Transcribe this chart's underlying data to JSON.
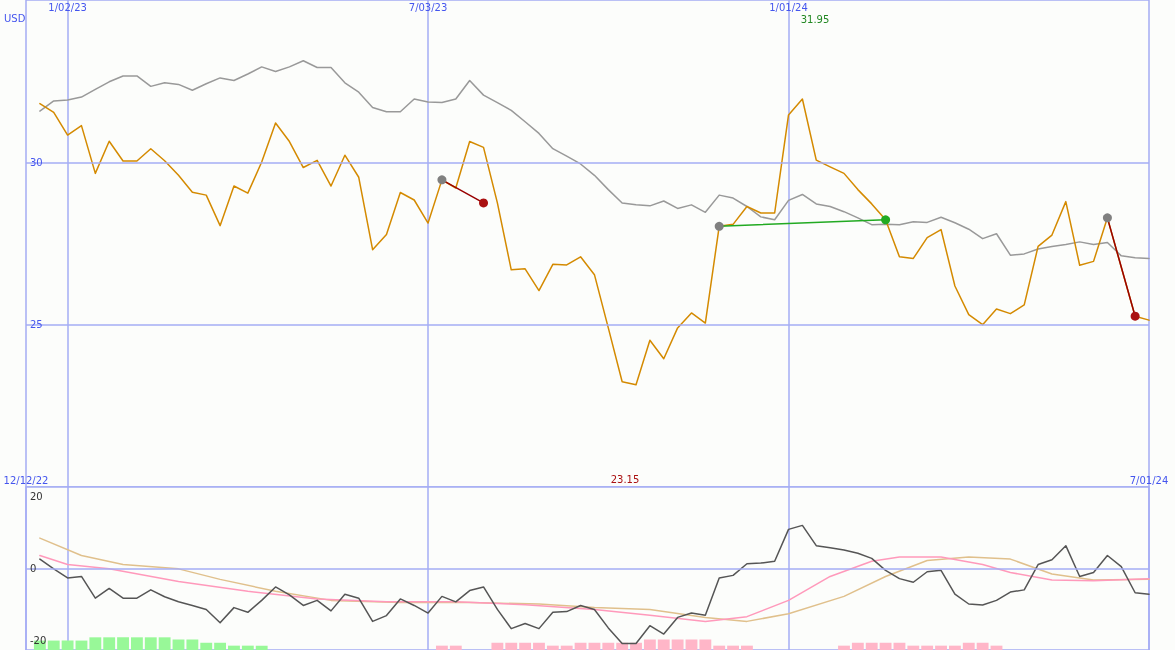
{
  "chart_data": [
    {
      "type": "line",
      "ylabel": "USD",
      "xlim": [
        "2022-12-12",
        "2024-07-01"
      ],
      "ylim": [
        20,
        35
      ],
      "xticks": [
        {
          "value": "2023-01-02",
          "label": "1/02/23"
        },
        {
          "value": "2023-07-03",
          "label": "7/03/23"
        },
        {
          "value": "2024-01-01",
          "label": "1/01/24"
        }
      ],
      "yticks": [
        25,
        30
      ],
      "grid": true,
      "marker": "none",
      "x": [
        "2022-12-19",
        "2022-12-26",
        "2023-01-02",
        "2023-01-09",
        "2023-01-16",
        "2023-01-23",
        "2023-01-30",
        "2023-02-06",
        "2023-02-13",
        "2023-02-20",
        "2023-02-27",
        "2023-03-06",
        "2023-03-13",
        "2023-03-20",
        "2023-03-27",
        "2023-04-03",
        "2023-04-10",
        "2023-04-17",
        "2023-04-24",
        "2023-05-01",
        "2023-05-08",
        "2023-05-15",
        "2023-05-22",
        "2023-05-29",
        "2023-06-05",
        "2023-06-12",
        "2023-06-19",
        "2023-06-26",
        "2023-07-03",
        "2023-07-10",
        "2023-07-17",
        "2023-07-24",
        "2023-07-31",
        "2023-08-07",
        "2023-08-14",
        "2023-08-21",
        "2023-08-28",
        "2023-09-04",
        "2023-09-11",
        "2023-09-18",
        "2023-09-25",
        "2023-10-02",
        "2023-10-09",
        "2023-10-16",
        "2023-10-23",
        "2023-10-30",
        "2023-11-06",
        "2023-11-13",
        "2023-11-20",
        "2023-11-27",
        "2023-12-04",
        "2023-12-11",
        "2023-12-18",
        "2023-12-25",
        "2024-01-01",
        "2024-01-08",
        "2024-01-15",
        "2024-01-22",
        "2024-01-29",
        "2024-02-05",
        "2024-02-12",
        "2024-02-19",
        "2024-02-26",
        "2024-03-04",
        "2024-03-11",
        "2024-03-18",
        "2024-03-25",
        "2024-04-01",
        "2024-04-08",
        "2024-04-15",
        "2024-04-22",
        "2024-04-29",
        "2024-05-06",
        "2024-05-13",
        "2024-05-20",
        "2024-05-27",
        "2024-06-03",
        "2024-06-10",
        "2024-06-17",
        "2024-06-24",
        "2024-07-01"
      ],
      "series": [
        {
          "color": "#999999",
          "values": [
            31.58,
            31.89,
            31.92,
            32.01,
            32.25,
            32.48,
            32.66,
            32.66,
            32.34,
            32.45,
            32.4,
            32.22,
            32.42,
            32.6,
            32.52,
            32.72,
            32.94,
            32.8,
            32.94,
            33.13,
            32.92,
            32.92,
            32.45,
            32.16,
            31.69,
            31.56,
            31.56,
            31.95,
            31.86,
            31.84,
            31.95,
            32.52,
            32.07,
            31.84,
            31.6,
            31.25,
            30.89,
            30.42,
            30.19,
            29.95,
            29.6,
            29.16,
            28.75,
            28.69,
            28.66,
            28.81,
            28.58,
            28.69,
            28.46,
            28.99,
            28.9,
            28.64,
            28.32,
            28.23,
            28.83,
            29.01,
            28.72,
            28.64,
            28.48,
            28.29,
            28.08,
            28.09,
            28.08,
            28.17,
            28.15,
            28.31,
            28.14,
            27.94,
            27.65,
            27.8,
            27.14,
            27.18,
            27.33,
            27.41,
            27.47,
            27.55,
            27.47,
            27.53,
            27.12,
            27.06,
            27.04
          ]
        },
        {
          "color": "#d48a00",
          "values": [
            31.81,
            31.54,
            30.84,
            31.13,
            29.66,
            30.65,
            30.04,
            30.04,
            30.42,
            30.05,
            29.6,
            29.08,
            28.99,
            28.05,
            29.27,
            29.05,
            30.01,
            31.21,
            30.64,
            29.84,
            30.06,
            29.27,
            30.22,
            29.54,
            27.31,
            27.78,
            29.07,
            28.84,
            28.13,
            29.46,
            29.21,
            30.64,
            30.46,
            28.75,
            26.69,
            26.72,
            26.05,
            26.86,
            26.84,
            27.09,
            26.54,
            24.9,
            23.24,
            23.15,
            24.52,
            23.95,
            24.9,
            25.36,
            25.05,
            28.03,
            28.09,
            28.64,
            28.44,
            28.44,
            31.46,
            31.95,
            30.07,
            29.86,
            29.66,
            29.16,
            28.72,
            28.23,
            27.09,
            27.04,
            27.68,
            27.93,
            26.19,
            25.31,
            25.0,
            25.48,
            25.34,
            25.61,
            27.41,
            27.76,
            28.79,
            26.83,
            26.95,
            28.29,
            26.77,
            25.26,
            25.14
          ]
        },
        {
          "color": "#990000",
          "marker": "circle",
          "x": [
            "2023-07-10",
            "2023-07-31"
          ],
          "values": [
            29.46,
            28.75
          ],
          "colors": [
            "#808080",
            "#aa1111"
          ]
        },
        {
          "color": "#22aa22",
          "marker": "circle",
          "x": [
            "2023-11-27",
            "2024-02-19"
          ],
          "values": [
            28.03,
            28.23
          ],
          "colors": [
            "#808080",
            "#22aa22"
          ]
        },
        {
          "color": "#990000",
          "marker": "circle",
          "x": [
            "2024-06-10",
            "2024-06-24"
          ],
          "values": [
            28.29,
            25.26
          ],
          "colors": [
            "#808080",
            "#aa1111"
          ]
        }
      ],
      "annotations": [
        "31.95",
        "23.15"
      ]
    },
    {
      "type": "line",
      "xlim": [
        "2022-12-12",
        "2024-07-01"
      ],
      "ylim": [
        -22.5,
        22.5
      ],
      "xticks": [
        {
          "value": "2022-12-12",
          "label": "12/12/22"
        },
        {
          "value": "2023-01-02",
          "label": null
        },
        {
          "value": "2023-07-03",
          "label": null
        },
        {
          "value": "2024-01-01",
          "label": null
        },
        {
          "value": "2024-07-01",
          "label": "7/01/24"
        }
      ],
      "yticks": [
        20,
        0,
        -20
      ],
      "grid": "x",
      "marker": "none",
      "ref_lines": [
        {
          "axis": "y",
          "value": 0
        }
      ],
      "x": [
        "2022-12-19",
        "2022-12-26",
        "2023-01-02",
        "2023-01-09",
        "2023-01-16",
        "2023-01-23",
        "2023-01-30",
        "2023-02-06",
        "2023-02-13",
        "2023-02-20",
        "2023-02-27",
        "2023-03-06",
        "2023-03-13",
        "2023-03-20",
        "2023-03-27",
        "2023-04-03",
        "2023-04-10",
        "2023-04-17",
        "2023-04-24",
        "2023-05-01",
        "2023-05-08",
        "2023-05-15",
        "2023-05-22",
        "2023-05-29",
        "2023-06-05",
        "2023-06-12",
        "2023-06-19",
        "2023-06-26",
        "2023-07-03",
        "2023-07-10",
        "2023-07-17",
        "2023-07-24",
        "2023-07-31",
        "2023-08-07",
        "2023-08-14",
        "2023-08-21",
        "2023-08-28",
        "2023-09-04",
        "2023-09-11",
        "2023-09-18",
        "2023-09-25",
        "2023-10-02",
        "2023-10-09",
        "2023-10-16",
        "2023-10-23",
        "2023-10-30",
        "2023-11-06",
        "2023-11-13",
        "2023-11-20",
        "2023-11-27",
        "2023-12-04",
        "2023-12-11",
        "2023-12-18",
        "2023-12-25",
        "2024-01-01",
        "2024-01-08",
        "2024-01-15",
        "2024-01-22",
        "2024-01-29",
        "2024-02-05",
        "2024-02-12",
        "2024-02-19",
        "2024-02-26",
        "2024-03-04",
        "2024-03-11",
        "2024-03-18",
        "2024-03-25",
        "2024-04-01",
        "2024-04-08",
        "2024-04-15",
        "2024-04-22",
        "2024-04-29",
        "2024-05-06",
        "2024-05-13",
        "2024-05-20",
        "2024-05-27",
        "2024-06-03",
        "2024-06-10",
        "2024-06-17",
        "2024-06-24",
        "2024-07-01"
      ],
      "series": [
        {
          "type": "bar",
          "color": "#98f898",
          "x": [
            "2022-12-19",
            "2022-12-26",
            "2023-01-02",
            "2023-01-09",
            "2023-01-16",
            "2023-01-23",
            "2023-01-30",
            "2023-02-06",
            "2023-02-13",
            "2023-02-20",
            "2023-02-27",
            "2023-03-06",
            "2023-03-13",
            "2023-03-20",
            "2023-03-27",
            "2023-04-03",
            "2023-04-10"
          ],
          "values": [
            2.6,
            2.6,
            2.6,
            2.6,
            3.5,
            3.5,
            3.5,
            3.5,
            3.5,
            3.5,
            2.9,
            2.9,
            2.0,
            2.0,
            1.2,
            1.2,
            1.2
          ],
          "base": [
            -22.5,
            -22.5,
            -22.5,
            -22.5,
            -22.5,
            -22.5,
            -22.5,
            -22.5,
            -22.5,
            -22.5,
            -22.5,
            -22.5,
            -22.5,
            -22.5,
            -22.5,
            -22.5,
            -22.5
          ]
        },
        {
          "type": "bar",
          "color": "#ffb6c8",
          "x": [
            "2023-07-10",
            "2023-07-17",
            "2023-08-07",
            "2023-08-14",
            "2023-08-21",
            "2023-08-28",
            "2023-09-04",
            "2023-09-11",
            "2023-09-18",
            "2023-09-25",
            "2023-10-02",
            "2023-10-09",
            "2023-10-16",
            "2023-10-23",
            "2023-10-30",
            "2023-11-06",
            "2023-11-13",
            "2023-11-20",
            "2023-11-27",
            "2023-12-04",
            "2023-12-11",
            "2024-01-29",
            "2024-02-05",
            "2024-02-12",
            "2024-02-19",
            "2024-02-26",
            "2024-03-04",
            "2024-03-11",
            "2024-03-18",
            "2024-03-25",
            "2024-04-01",
            "2024-04-08",
            "2024-04-15"
          ],
          "values": [
            1.2,
            1.2,
            2.0,
            2.0,
            2.0,
            2.0,
            1.2,
            1.2,
            2.0,
            2.0,
            2.0,
            2.0,
            2.0,
            2.9,
            2.9,
            2.9,
            2.9,
            2.9,
            1.2,
            1.2,
            1.2,
            1.2,
            2.0,
            2.0,
            2.0,
            2.0,
            1.2,
            1.2,
            1.2,
            1.2,
            2.0,
            2.0,
            1.2
          ],
          "base": [
            -22.5,
            -22.5,
            -22.5,
            -22.5,
            -22.5,
            -22.5,
            -22.5,
            -22.5,
            -22.5,
            -22.5,
            -22.5,
            -22.5,
            -22.5,
            -22.5,
            -22.5,
            -22.5,
            -22.5,
            -22.5,
            -22.5,
            -22.5,
            -22.5,
            -22.5,
            -22.5,
            -22.5,
            -22.5,
            -22.5,
            -22.5,
            -22.5,
            -22.5,
            -22.5,
            -22.5,
            -22.5,
            -22.5
          ]
        },
        {
          "color": "#e0c08c",
          "x": [
            "2022-12-19",
            "2023-01-09",
            "2023-01-30",
            "2023-02-27",
            "2023-03-20",
            "2023-04-17",
            "2023-05-15",
            "2023-06-19",
            "2023-07-24",
            "2023-08-28",
            "2023-09-25",
            "2023-10-23",
            "2023-11-20",
            "2023-12-11",
            "2024-01-01",
            "2024-01-29",
            "2024-02-19",
            "2024-03-11",
            "2024-04-01",
            "2024-04-22",
            "2024-05-13",
            "2024-06-03",
            "2024-07-01"
          ],
          "values": [
            8.4,
            3.6,
            1.1,
            -0.1,
            -3.0,
            -6.3,
            -8.8,
            -9.4,
            -9.4,
            -9.8,
            -10.8,
            -11.3,
            -13.5,
            -14.6,
            -12.5,
            -7.7,
            -2.2,
            2.2,
            3.2,
            2.6,
            -1.5,
            -3.2,
            -3.0
          ]
        },
        {
          "color": "#ff99bb",
          "x": [
            "2022-12-19",
            "2023-01-02",
            "2023-01-23",
            "2023-02-27",
            "2023-04-03",
            "2023-05-08",
            "2023-06-12",
            "2023-07-17",
            "2023-08-21",
            "2023-09-25",
            "2023-10-23",
            "2023-11-20",
            "2023-12-11",
            "2024-01-01",
            "2024-01-22",
            "2024-02-12",
            "2024-02-26",
            "2024-03-18",
            "2024-04-08",
            "2024-04-22",
            "2024-05-13",
            "2024-06-03",
            "2024-07-01"
          ],
          "values": [
            3.6,
            1.1,
            -0.1,
            -3.6,
            -6.3,
            -8.4,
            -9.2,
            -9.2,
            -10.0,
            -11.3,
            -12.9,
            -14.6,
            -13.3,
            -8.8,
            -2.2,
            2.0,
            3.2,
            3.2,
            1.1,
            -1.1,
            -3.2,
            -3.4,
            -2.8
          ]
        },
        {
          "color": "#555555",
          "values": [
            2.6,
            -0.1,
            -2.6,
            -2.2,
            -8.2,
            -5.5,
            -8.2,
            -8.2,
            -5.9,
            -7.8,
            -9.2,
            -10.2,
            -11.3,
            -15.0,
            -10.8,
            -12.1,
            -8.8,
            -5.1,
            -7.3,
            -10.2,
            -8.8,
            -11.7,
            -7.1,
            -8.2,
            -14.6,
            -13.0,
            -8.4,
            -10.2,
            -12.3,
            -7.7,
            -9.2,
            -6.1,
            -5.1,
            -11.3,
            -16.6,
            -15.2,
            -16.6,
            -12.1,
            -11.9,
            -10.2,
            -11.3,
            -16.4,
            -20.7,
            -20.7,
            -15.8,
            -18.1,
            -13.5,
            -12.3,
            -12.9,
            -2.6,
            -1.9,
            1.3,
            1.5,
            2.0,
            10.8,
            11.9,
            6.3,
            5.7,
            5.1,
            4.2,
            2.8,
            -0.5,
            -2.8,
            -3.8,
            -0.9,
            -0.5,
            -7.1,
            -9.8,
            -10.1,
            -8.8,
            -6.5,
            -5.9,
            1.1,
            2.4,
            6.3,
            -2.2,
            -1.1,
            3.6,
            0.5,
            -6.7,
            -7.1
          ]
        }
      ]
    }
  ]
}
